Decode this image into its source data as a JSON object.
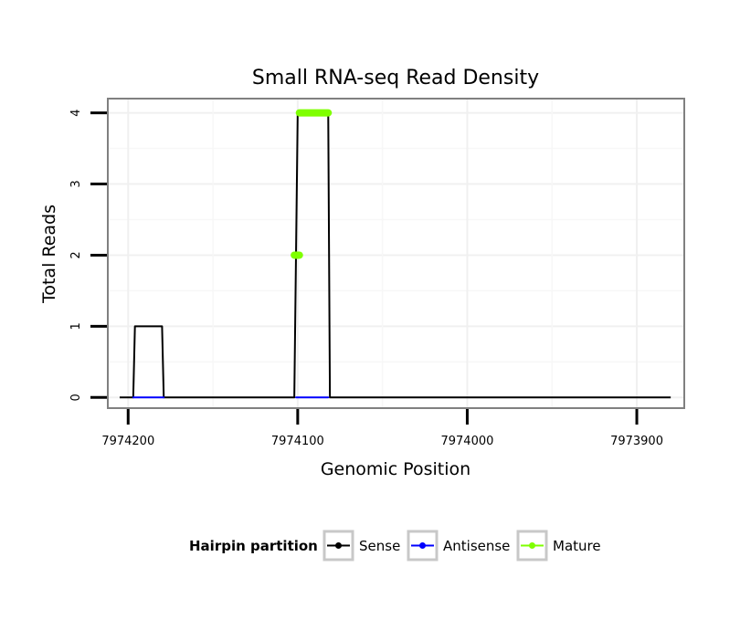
{
  "chart_data": {
    "type": "line",
    "title": "Small RNA-seq Read Density",
    "xlabel": "Genomic Position",
    "ylabel": "Total Reads",
    "xlim": [
      7974212,
      7973872
    ],
    "x_reversed": true,
    "ylim": [
      -0.15,
      4.2
    ],
    "x_ticks": [
      7974200,
      7974100,
      7974000,
      7973900
    ],
    "x_tick_labels": [
      "7974200",
      "7974100",
      "7974000",
      "7973900"
    ],
    "y_ticks": [
      0,
      1,
      2,
      3,
      4
    ],
    "y_tick_labels": [
      "0",
      "1",
      "2",
      "3",
      "4"
    ],
    "grid": true,
    "legend_position": "bottom",
    "legend": {
      "title": "Hairpin partition",
      "entries": [
        {
          "label": "Sense",
          "color": "#000000"
        },
        {
          "label": "Antisense",
          "color": "#0000ff"
        },
        {
          "label": "Mature",
          "color": "#7fff00"
        }
      ]
    },
    "series": [
      {
        "name": "Sense",
        "color": "#000000",
        "points": [
          [
            7974205,
            0
          ],
          [
            7974197,
            0
          ],
          [
            7974196,
            1
          ],
          [
            7974180,
            1
          ],
          [
            7974179,
            0
          ],
          [
            7974102,
            0
          ],
          [
            7974100,
            4
          ],
          [
            7974082,
            4
          ],
          [
            7974081,
            0
          ],
          [
            7973880,
            0
          ]
        ]
      },
      {
        "name": "Antisense",
        "color": "#0000ff",
        "segments": [
          [
            [
              7974197,
              0
            ],
            [
              7974179,
              0
            ]
          ],
          [
            [
              7974101,
              0
            ],
            [
              7974082,
              0
            ]
          ]
        ]
      },
      {
        "name": "Mature",
        "color": "#7fff00",
        "segments": [
          [
            [
              7974102,
              2
            ],
            [
              7974099,
              2
            ]
          ],
          [
            [
              7974099,
              4
            ],
            [
              7974082,
              4
            ]
          ]
        ]
      }
    ]
  }
}
